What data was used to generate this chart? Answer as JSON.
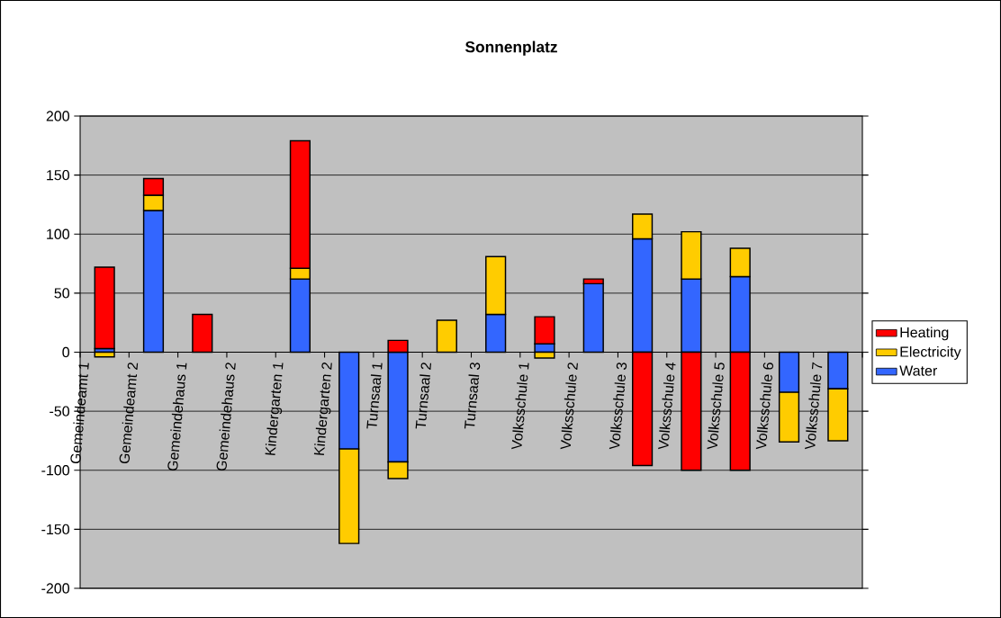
{
  "chart_data": {
    "type": "bar",
    "stacked": true,
    "title": "Sonnenplatz",
    "categories": [
      "Gemeindeamt 1",
      "Gemeindeamt 2",
      "Gemeindehaus 1",
      "Gemeindehaus 2",
      "Kindergarten 1",
      "Kindergarten 2",
      "Turnsaal 1",
      "Turnsaal 2",
      "Turnsaal 3",
      "Volksschule 1",
      "Volksschule 2",
      "Volksschule 3",
      "Volksschule 4",
      "Volksschule 5",
      "Volksschule 6",
      "Volksschule 7"
    ],
    "series": [
      {
        "name": "Water",
        "color": "#3366ff",
        "values": [
          3,
          120,
          null,
          null,
          62,
          -82,
          -93,
          null,
          32,
          7,
          58,
          96,
          62,
          64,
          -34,
          -31
        ]
      },
      {
        "name": "Electricity",
        "color": "#ffcc00",
        "values": [
          -4,
          13,
          null,
          null,
          9,
          -80,
          -14,
          27,
          49,
          -5,
          null,
          21,
          40,
          24,
          -42,
          -44
        ]
      },
      {
        "name": "Heating",
        "color": "#ff0000",
        "values": [
          69,
          14,
          32,
          null,
          108,
          null,
          10,
          null,
          null,
          23,
          4,
          -96,
          -100,
          -100,
          null,
          null
        ]
      }
    ],
    "ylim": [
      -200,
      200
    ],
    "yticks": [
      -200,
      -150,
      -100,
      -50,
      0,
      50,
      100,
      150,
      200
    ],
    "grid": "y",
    "legend": "right"
  }
}
